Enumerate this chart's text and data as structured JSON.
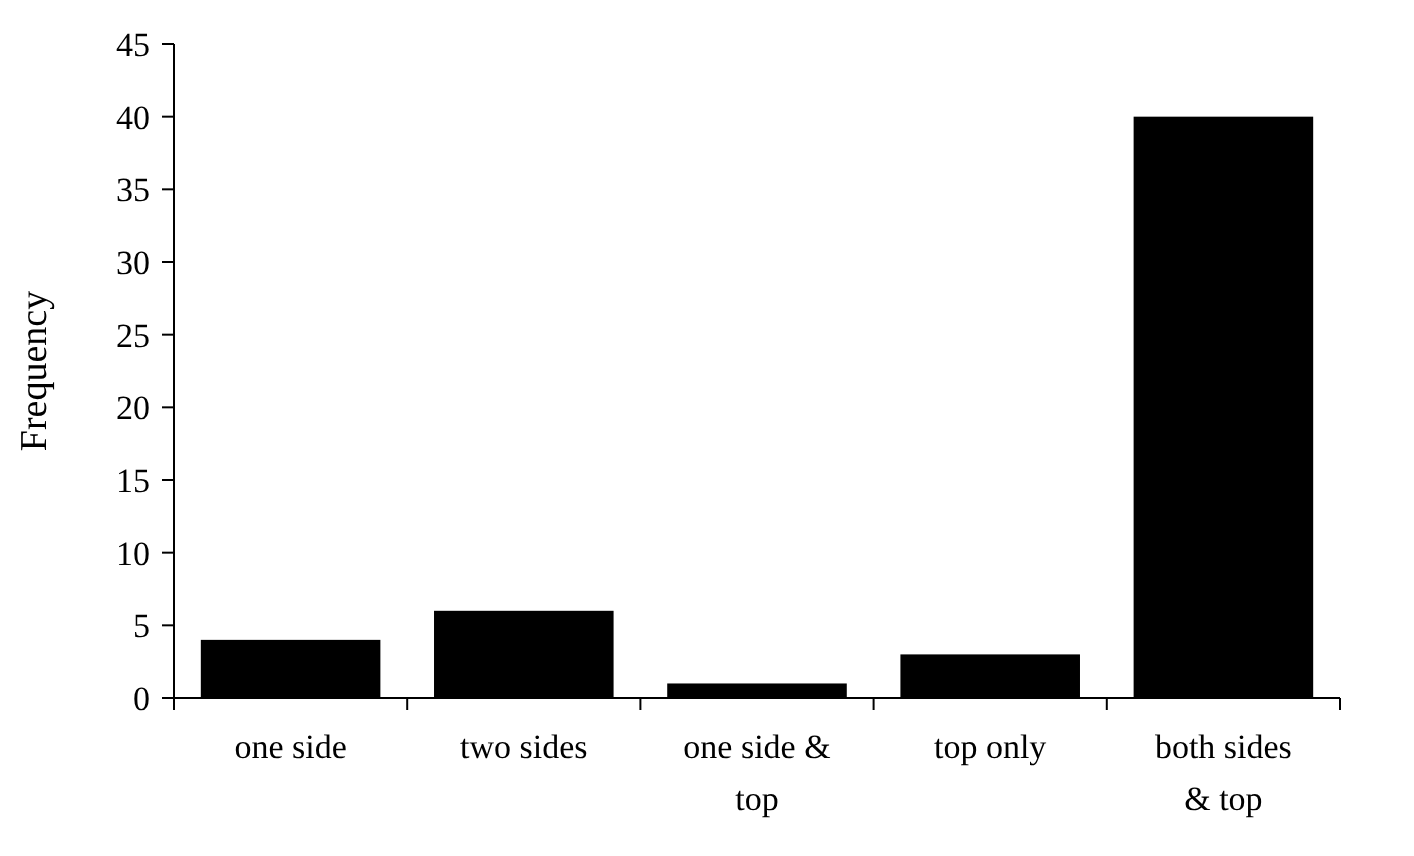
{
  "chart_data": {
    "type": "bar",
    "ylabel": "Frequency",
    "categories": [
      "one side",
      "two sides",
      "one side & top",
      "top only",
      "both sides & top"
    ],
    "values": [
      4,
      6,
      1,
      3,
      40
    ],
    "color": "#000000",
    "ylim": [
      0,
      45
    ],
    "yticks": [
      0,
      5,
      10,
      15,
      20,
      25,
      30,
      35,
      40,
      45
    ],
    "grid": false
  }
}
